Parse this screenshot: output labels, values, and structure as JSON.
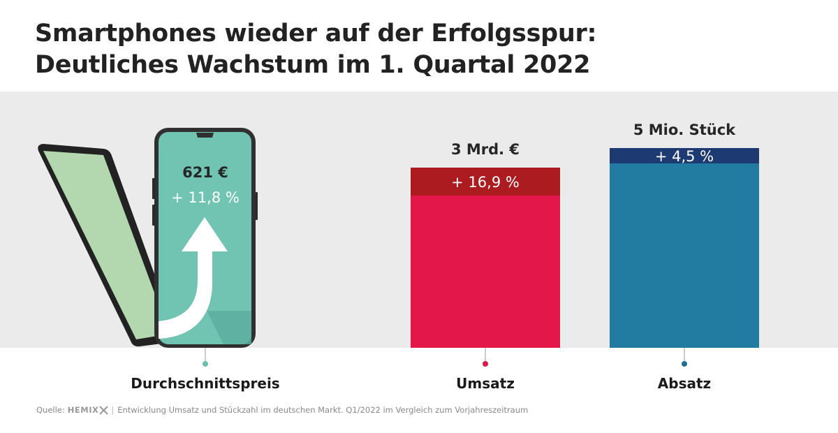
{
  "title": {
    "line1": "Smartphones wieder auf der Erfolgsspur:",
    "line2": "Deutliches Wachstum im 1. Quartal 2022"
  },
  "chart_data": {
    "type": "bar",
    "categories": [
      "Durchschnittspreis",
      "Umsatz",
      "Absatz"
    ],
    "items": [
      {
        "category": "Durchschnittspreis",
        "value_label": "621 €",
        "growth_label": "+ 11,8 %",
        "growth_pct": 11.8,
        "marker_color": "#6cc0b0",
        "visual": "smartphone-illustration"
      },
      {
        "category": "Umsatz",
        "value_label": "3 Mrd. €",
        "growth_label": "+ 16,9 %",
        "growth_pct": 16.9,
        "color": "#e4174b",
        "growth_color": "#ab1b20",
        "marker_color": "#d81848"
      },
      {
        "category": "Absatz",
        "value_label": "5 Mio. Stück",
        "growth_label": "+ 4,5 %",
        "growth_pct": 4.5,
        "color": "#227ca1",
        "growth_color": "#1e3a73",
        "marker_color": "#1f6f90"
      }
    ],
    "grid": false,
    "legend": "none"
  },
  "footer": {
    "source_label": "Quelle:",
    "brand": "HEMIX",
    "separator": "|",
    "note": "Entwicklung Umsatz und Stückzahl im deutschen Markt. Q1/2022 im Vergleich zum Vorjahreszeitraum"
  }
}
